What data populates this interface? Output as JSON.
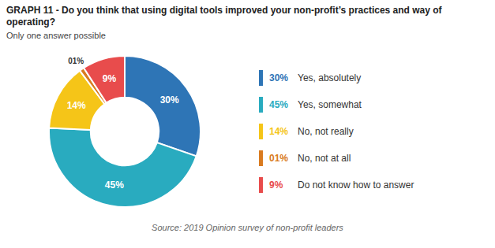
{
  "chart_data": {
    "type": "pie",
    "title": "GRAPH 11 - Do you think that using digital tools improved your non-profit’s practices and way of operating?",
    "subtitle": "Only one answer possible",
    "caption": "Source: 2019 Opinion survey of non-profit leaders",
    "categories": [
      "Yes, absolutely",
      "Yes, somewhat",
      "No, not really",
      "No, not at all",
      "Do not know how to answer"
    ],
    "values": [
      30,
      45,
      14,
      1,
      9
    ],
    "value_labels": [
      "30%",
      "45%",
      "14%",
      "01%",
      "9%"
    ],
    "colors": [
      "#2E75B6",
      "#29ABBF",
      "#F5C518",
      "#D97B20",
      "#E84C4C"
    ],
    "data_labels": true,
    "legend": "right"
  }
}
